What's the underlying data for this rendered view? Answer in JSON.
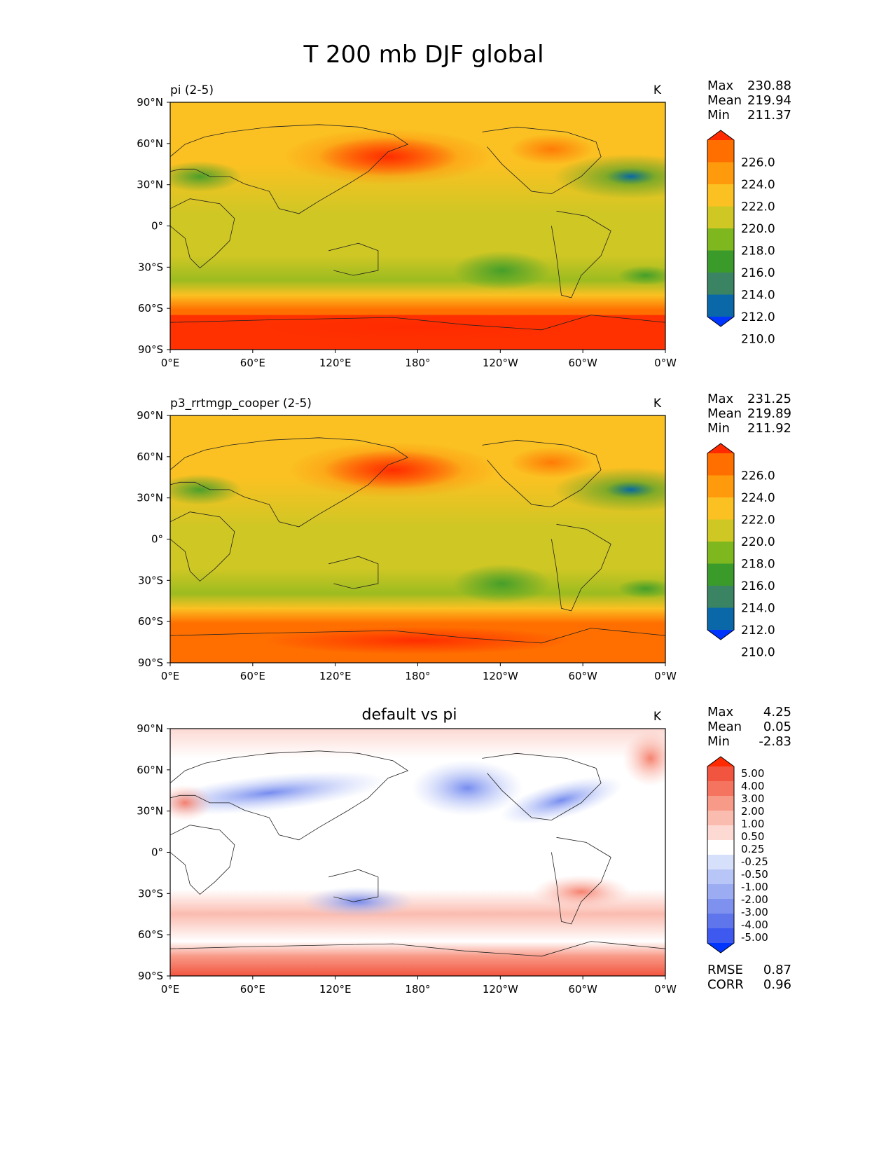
{
  "figure": {
    "title": "T 200 mb DJF global",
    "lat_ticks": [
      "90°N",
      "60°N",
      "30°N",
      "0°",
      "30°S",
      "60°S",
      "90°S"
    ],
    "lon_ticks": [
      "0°E",
      "60°E",
      "120°E",
      "180°",
      "120°W",
      "60°W",
      "0°W"
    ]
  },
  "panels": [
    {
      "id": "test",
      "left_title": "pi (2-5)",
      "center_title": "",
      "units": "K",
      "stats": {
        "max_label": "Max",
        "max": "230.88",
        "mean_label": "Mean",
        "mean": "219.94",
        "min_label": "Min",
        "min": "211.37"
      },
      "colorbar_labels": [
        "226.0",
        "224.0",
        "222.0",
        "220.0",
        "218.0",
        "216.0",
        "214.0",
        "212.0",
        "210.0"
      ]
    },
    {
      "id": "reference",
      "left_title": "p3_rrtmgp_cooper (2-5)",
      "center_title": "",
      "units": "K",
      "stats": {
        "max_label": "Max",
        "max": "231.25",
        "mean_label": "Mean",
        "mean": "219.89",
        "min_label": "Min",
        "min": "211.92"
      },
      "colorbar_labels": [
        "226.0",
        "224.0",
        "222.0",
        "220.0",
        "218.0",
        "216.0",
        "214.0",
        "212.0",
        "210.0"
      ]
    },
    {
      "id": "difference",
      "left_title": "",
      "center_title": "default vs pi",
      "units": "K",
      "stats": {
        "max_label": "Max",
        "max": "4.25",
        "mean_label": "Mean",
        "mean": "0.05",
        "min_label": "Min",
        "min": "-2.83"
      },
      "colorbar_labels": [
        "5.00",
        "4.00",
        "3.00",
        "2.00",
        "1.00",
        "0.50",
        "0.25",
        "-0.25",
        "-0.50",
        "-1.00",
        "-2.00",
        "-3.00",
        "-4.00",
        "-5.00"
      ],
      "metrics": {
        "rmse_label": "RMSE",
        "rmse": "0.87",
        "corr_label": "CORR",
        "corr": "0.96"
      }
    }
  ],
  "colors": {
    "abs_scale_top_to_bottom": [
      "#ff2a00",
      "#ff6f00",
      "#ff9a0d",
      "#fbc122",
      "#cfc724",
      "#7fb71f",
      "#3a9b2b",
      "#3a8463",
      "#0a67a8",
      "#0035ff"
    ],
    "diff_scale_top_to_bottom": [
      "#ff2a00",
      "#f2553f",
      "#f4745f",
      "#f89a88",
      "#fbbcb0",
      "#fcd9d3",
      "#ffffff",
      "#d7e0fb",
      "#b8c6f7",
      "#9bacf2",
      "#7e91ee",
      "#5f75ec",
      "#3d59f0",
      "#0035ff"
    ]
  }
}
